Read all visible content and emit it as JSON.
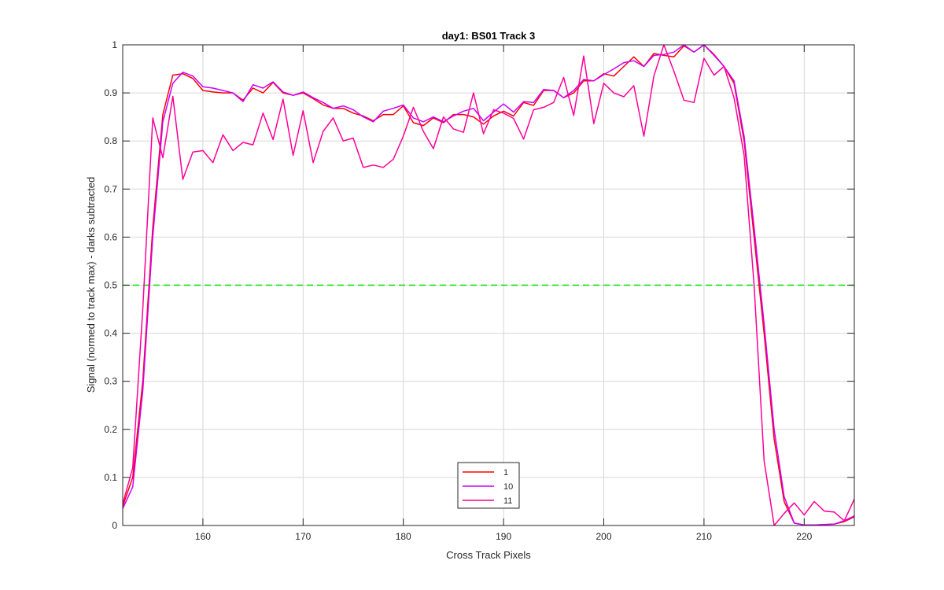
{
  "chart_data": {
    "type": "line",
    "title": "day1: BS01  Track 3",
    "xlabel": "Cross Track Pixels",
    "ylabel": "Signal (normed to track max) - darks subtracted",
    "xlim": [
      152,
      225
    ],
    "ylim": [
      0,
      1
    ],
    "x_ticks": [
      "160",
      "170",
      "180",
      "190",
      "200",
      "210",
      "220"
    ],
    "y_ticks": [
      "0",
      "0.1",
      "0.2",
      "0.3",
      "0.4",
      "0.5",
      "0.6",
      "0.7",
      "0.8",
      "0.9",
      "1"
    ],
    "grid": true,
    "legend_position": "bottom-center",
    "reference_line": {
      "y": 0.5,
      "color": "#00dd00",
      "style": "dashed"
    },
    "x": [
      152,
      153,
      154,
      155,
      156,
      157,
      158,
      159,
      160,
      161,
      162,
      163,
      164,
      165,
      166,
      167,
      168,
      169,
      170,
      171,
      172,
      173,
      174,
      175,
      176,
      177,
      178,
      179,
      180,
      181,
      182,
      183,
      184,
      185,
      186,
      187,
      188,
      189,
      190,
      191,
      192,
      193,
      194,
      195,
      196,
      197,
      198,
      199,
      200,
      201,
      202,
      203,
      204,
      205,
      206,
      207,
      208,
      209,
      210,
      211,
      212,
      213,
      214,
      215,
      216,
      217,
      218,
      219,
      220,
      221,
      222,
      223,
      224,
      225
    ],
    "series": [
      {
        "name": "1",
        "color": "#ff0000",
        "values": [
          0.04,
          0.1,
          0.3,
          0.62,
          0.855,
          0.937,
          0.94,
          0.93,
          0.905,
          0.902,
          0.9,
          0.9,
          0.885,
          0.91,
          0.9,
          0.922,
          0.9,
          0.895,
          0.9,
          0.888,
          0.875,
          0.868,
          0.868,
          0.858,
          0.852,
          0.842,
          0.855,
          0.855,
          0.873,
          0.838,
          0.832,
          0.848,
          0.838,
          0.855,
          0.855,
          0.85,
          0.835,
          0.852,
          0.862,
          0.852,
          0.88,
          0.874,
          0.905,
          0.905,
          0.89,
          0.9,
          0.925,
          0.925,
          0.94,
          0.935,
          0.955,
          0.975,
          0.955,
          0.982,
          0.978,
          0.975,
          0.998,
          0.985,
          1.0,
          0.98,
          0.955,
          0.92,
          0.8,
          0.6,
          0.4,
          0.18,
          0.05,
          0.005,
          0.001,
          0.001,
          0.002,
          0.003,
          0.008,
          0.018
        ]
      },
      {
        "name": "10",
        "color": "#cc00ff",
        "values": [
          0.035,
          0.08,
          0.28,
          0.6,
          0.84,
          0.92,
          0.943,
          0.935,
          0.913,
          0.91,
          0.905,
          0.9,
          0.882,
          0.917,
          0.91,
          0.923,
          0.902,
          0.895,
          0.902,
          0.89,
          0.88,
          0.868,
          0.873,
          0.865,
          0.85,
          0.84,
          0.862,
          0.868,
          0.875,
          0.848,
          0.84,
          0.85,
          0.84,
          0.852,
          0.862,
          0.868,
          0.842,
          0.86,
          0.877,
          0.86,
          0.882,
          0.88,
          0.907,
          0.905,
          0.89,
          0.905,
          0.928,
          0.925,
          0.938,
          0.95,
          0.963,
          0.967,
          0.955,
          0.978,
          0.98,
          0.985,
          1.0,
          0.985,
          1.0,
          0.978,
          0.955,
          0.925,
          0.81,
          0.62,
          0.42,
          0.2,
          0.06,
          0.005,
          0.001,
          0.001,
          0.002,
          0.003,
          0.01,
          0.02
        ]
      },
      {
        "name": "11",
        "color": "#ff0099",
        "values": [
          0.045,
          0.12,
          0.45,
          0.848,
          0.765,
          0.893,
          0.72,
          0.777,
          0.78,
          0.755,
          0.813,
          0.78,
          0.797,
          0.792,
          0.858,
          0.803,
          0.887,
          0.77,
          0.863,
          0.755,
          0.82,
          0.848,
          0.8,
          0.806,
          0.745,
          0.75,
          0.745,
          0.762,
          0.81,
          0.87,
          0.82,
          0.784,
          0.85,
          0.825,
          0.818,
          0.9,
          0.815,
          0.865,
          0.858,
          0.847,
          0.804,
          0.865,
          0.87,
          0.88,
          0.932,
          0.853,
          0.977,
          0.836,
          0.92,
          0.9,
          0.892,
          0.915,
          0.81,
          0.935,
          1.0,
          0.945,
          0.885,
          0.88,
          0.972,
          0.937,
          0.955,
          0.89,
          0.77,
          0.5,
          0.135,
          0.0,
          0.025,
          0.047,
          0.022,
          0.05,
          0.03,
          0.028,
          0.01,
          0.055
        ]
      }
    ]
  }
}
